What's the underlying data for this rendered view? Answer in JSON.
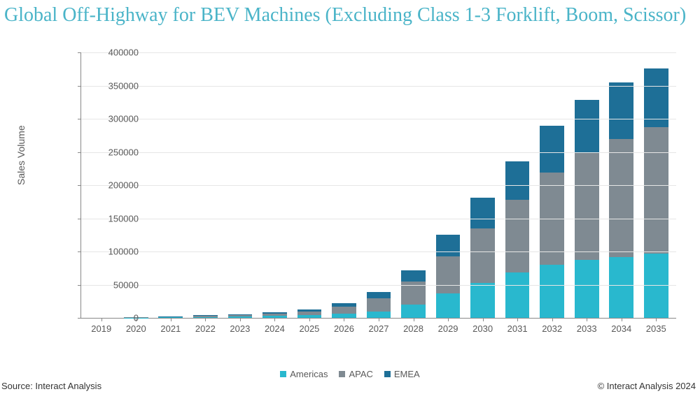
{
  "title": "Global Off-Highway for BEV Machines (Excluding Class 1-3 Forklift, Boom, Scissor)",
  "chart": {
    "type": "stacked-bar",
    "y_axis_title": "Sales Volume",
    "ylim": [
      0,
      400000
    ],
    "ytick_step": 50000,
    "yticks": [
      0,
      50000,
      100000,
      150000,
      200000,
      250000,
      300000,
      350000,
      400000
    ],
    "categories": [
      "2019",
      "2020",
      "2021",
      "2022",
      "2023",
      "2024",
      "2025",
      "2026",
      "2027",
      "2028",
      "2029",
      "2030",
      "2031",
      "2032",
      "2033",
      "2034",
      "2035"
    ],
    "series": [
      {
        "name": "Americas",
        "color": "#29b8ce",
        "values": [
          0,
          300,
          600,
          1200,
          1800,
          2800,
          4000,
          6000,
          9000,
          20000,
          37000,
          53000,
          68000,
          80000,
          87000,
          92000,
          97000
        ]
      },
      {
        "name": "APAC",
        "color": "#7f8a92",
        "values": [
          0,
          300,
          800,
          1800,
          2600,
          3800,
          5200,
          11000,
          21000,
          35000,
          56000,
          82000,
          110000,
          139000,
          161000,
          177000,
          190000
        ]
      },
      {
        "name": "EMEA",
        "color": "#1e6f97",
        "values": [
          0,
          300,
          400,
          1000,
          1400,
          2200,
          3300,
          5500,
          9500,
          17000,
          32000,
          46000,
          58000,
          71000,
          80000,
          86000,
          89000
        ]
      }
    ],
    "background_color": "#ffffff",
    "grid_color": "#e6e6e6",
    "axis_color": "#888888",
    "label_color": "#595959",
    "label_fontsize": 13,
    "title_color": "#4ab4c8",
    "title_fontsize": 28,
    "bar_width_ratio": 0.7
  },
  "footer": {
    "source": "Source: Interact Analysis",
    "copyright": "© Interact Analysis 2024"
  }
}
